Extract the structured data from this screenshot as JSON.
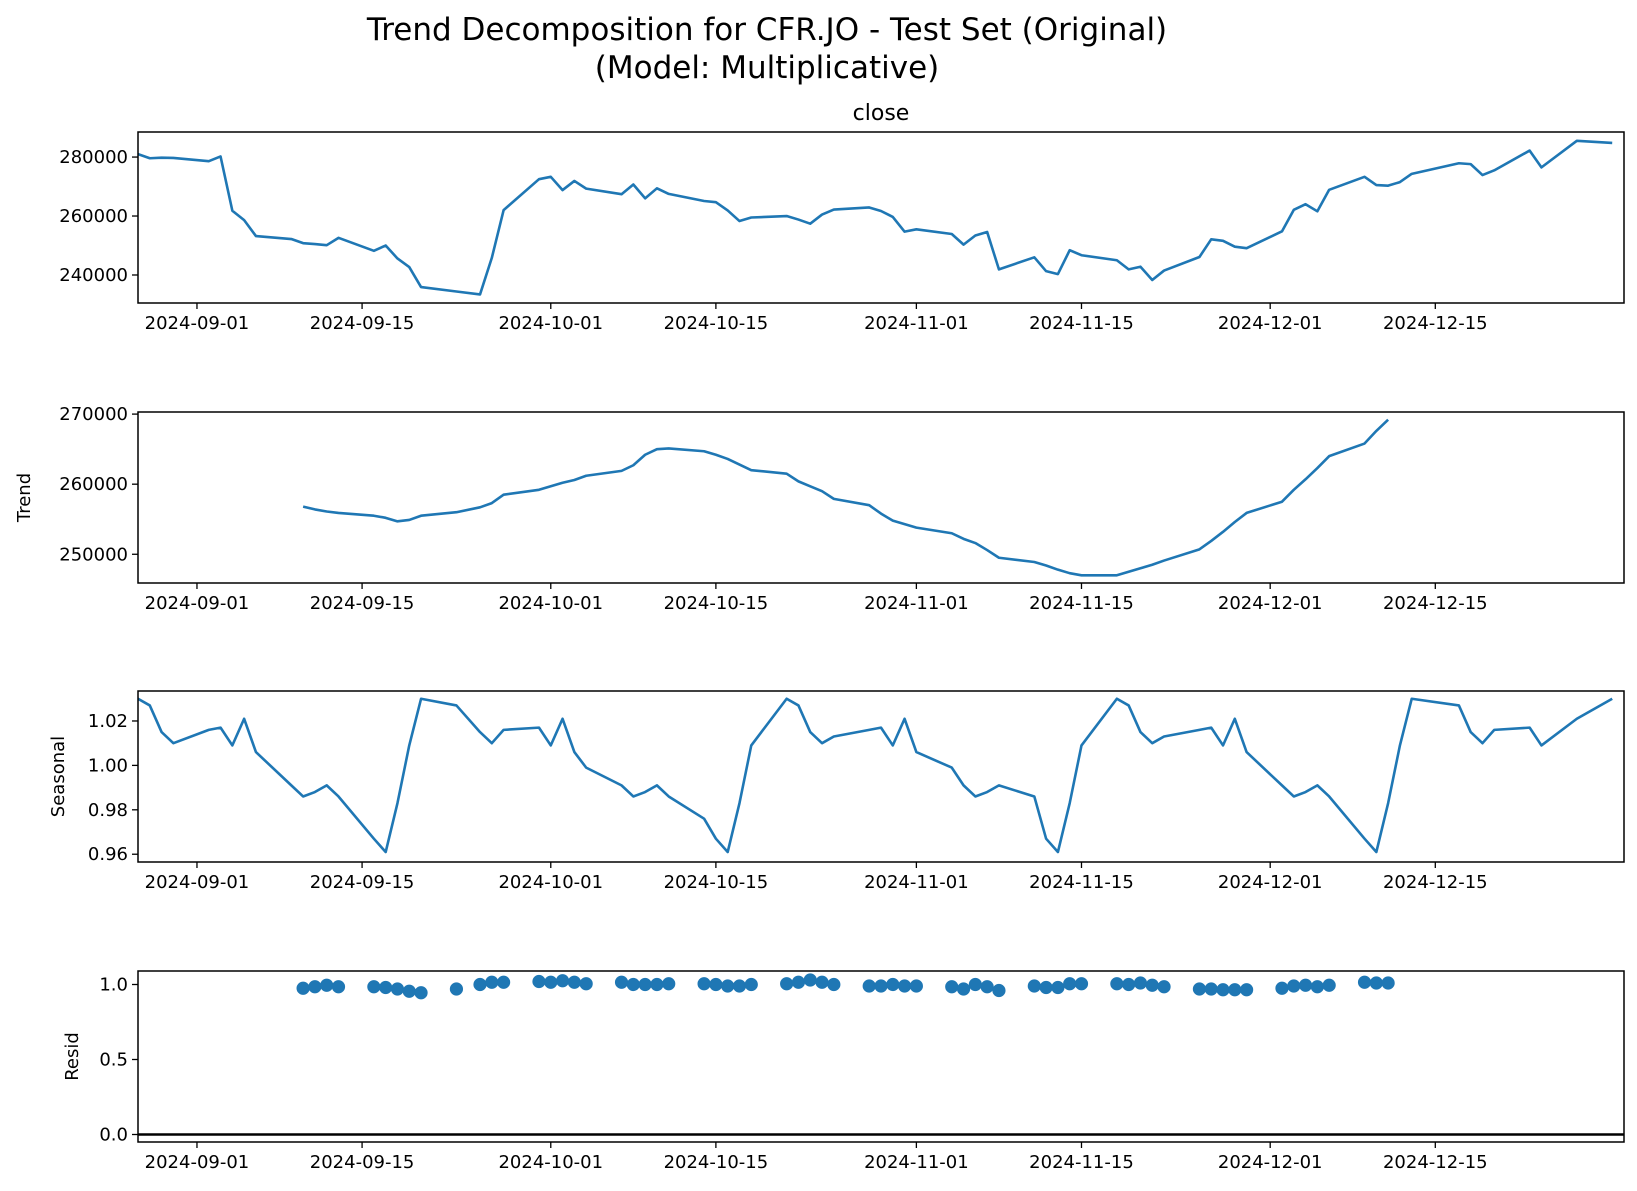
{
  "title_line1": "Trend Decomposition for CFR.JO - Test Set (Original)",
  "title_line2": "(Model: Multiplicative)",
  "colors": {
    "line": "#1f77b4",
    "axis": "#000000",
    "zero_line": "#000000"
  },
  "chart_data": [
    {
      "type": "line",
      "title": "close",
      "ylabel": "",
      "xlim": [
        "2024-08-27",
        "2024-12-31"
      ],
      "ylim": [
        230500,
        288500
      ],
      "x_ticks": [
        "2024-09-01",
        "2024-09-15",
        "2024-10-01",
        "2024-10-15",
        "2024-11-01",
        "2024-11-15",
        "2024-12-01",
        "2024-12-15"
      ],
      "y_ticks": [
        240000,
        260000,
        280000
      ],
      "series": [
        {
          "x": [
            "2024-08-27",
            "2024-08-28",
            "2024-08-29",
            "2024-08-30",
            "2024-09-02",
            "2024-09-03",
            "2024-09-04",
            "2024-09-05",
            "2024-09-06",
            "2024-09-09",
            "2024-09-10",
            "2024-09-11",
            "2024-09-12",
            "2024-09-13",
            "2024-09-16",
            "2024-09-17",
            "2024-09-18",
            "2024-09-19",
            "2024-09-20",
            "2024-09-23",
            "2024-09-25",
            "2024-09-26",
            "2024-09-27",
            "2024-09-30",
            "2024-10-01",
            "2024-10-02",
            "2024-10-03",
            "2024-10-04",
            "2024-10-07",
            "2024-10-08",
            "2024-10-09",
            "2024-10-10",
            "2024-10-11",
            "2024-10-14",
            "2024-10-15",
            "2024-10-16",
            "2024-10-17",
            "2024-10-18",
            "2024-10-21",
            "2024-10-22",
            "2024-10-23",
            "2024-10-24",
            "2024-10-25",
            "2024-10-28",
            "2024-10-29",
            "2024-10-30",
            "2024-10-31",
            "2024-11-01",
            "2024-11-04",
            "2024-11-05",
            "2024-11-06",
            "2024-11-07",
            "2024-11-08",
            "2024-11-11",
            "2024-11-12",
            "2024-11-13",
            "2024-11-14",
            "2024-11-15",
            "2024-11-18",
            "2024-11-19",
            "2024-11-20",
            "2024-11-21",
            "2024-11-22",
            "2024-11-25",
            "2024-11-26",
            "2024-11-27",
            "2024-11-28",
            "2024-11-29",
            "2024-12-02",
            "2024-12-03",
            "2024-12-04",
            "2024-12-05",
            "2024-12-06",
            "2024-12-09",
            "2024-12-10",
            "2024-12-11",
            "2024-12-12",
            "2024-12-13",
            "2024-12-17",
            "2024-12-18",
            "2024-12-19",
            "2024-12-20",
            "2024-12-23",
            "2024-12-24",
            "2024-12-27",
            "2024-12-30"
          ],
          "y": [
            281000,
            279600,
            279800,
            279700,
            278600,
            280200,
            261800,
            258600,
            253200,
            252200,
            250800,
            250500,
            250100,
            252600,
            248200,
            250000,
            245600,
            242700,
            235900,
            234400,
            233400,
            245800,
            262000,
            272500,
            273300,
            268800,
            271900,
            269300,
            267400,
            270700,
            266000,
            269400,
            267500,
            265100,
            264700,
            261900,
            258300,
            259500,
            260000,
            258800,
            257400,
            260500,
            262200,
            262900,
            261700,
            259700,
            254700,
            255500,
            253900,
            250300,
            253400,
            254600,
            241900,
            246000,
            241300,
            240300,
            248400,
            246700,
            245000,
            241900,
            242800,
            238300,
            241500,
            246100,
            252100,
            251600,
            249600,
            249100,
            254800,
            262100,
            264000,
            261600,
            268900,
            273300,
            270500,
            270300,
            271500,
            274300,
            277900,
            277600,
            273900,
            275500,
            282200,
            276500,
            285500,
            284800
          ]
        }
      ]
    },
    {
      "type": "line",
      "title": "",
      "ylabel": "Trend",
      "xlim": [
        "2024-08-27",
        "2024-12-31"
      ],
      "ylim": [
        245900,
        270300
      ],
      "x_ticks": [
        "2024-09-01",
        "2024-09-15",
        "2024-10-01",
        "2024-10-15",
        "2024-11-01",
        "2024-11-15",
        "2024-12-01",
        "2024-12-15"
      ],
      "y_ticks": [
        250000,
        260000,
        270000
      ],
      "series": [
        {
          "x": [
            "2024-09-10",
            "2024-09-11",
            "2024-09-12",
            "2024-09-13",
            "2024-09-16",
            "2024-09-17",
            "2024-09-18",
            "2024-09-19",
            "2024-09-20",
            "2024-09-23",
            "2024-09-25",
            "2024-09-26",
            "2024-09-27",
            "2024-09-30",
            "2024-10-01",
            "2024-10-02",
            "2024-10-03",
            "2024-10-04",
            "2024-10-07",
            "2024-10-08",
            "2024-10-09",
            "2024-10-10",
            "2024-10-11",
            "2024-10-14",
            "2024-10-15",
            "2024-10-16",
            "2024-10-17",
            "2024-10-18",
            "2024-10-21",
            "2024-10-22",
            "2024-10-23",
            "2024-10-24",
            "2024-10-25",
            "2024-10-28",
            "2024-10-29",
            "2024-10-30",
            "2024-10-31",
            "2024-11-01",
            "2024-11-04",
            "2024-11-05",
            "2024-11-06",
            "2024-11-07",
            "2024-11-08",
            "2024-11-11",
            "2024-11-12",
            "2024-11-13",
            "2024-11-14",
            "2024-11-15",
            "2024-11-18",
            "2024-11-19",
            "2024-11-20",
            "2024-11-21",
            "2024-11-22",
            "2024-11-25",
            "2024-11-26",
            "2024-11-27",
            "2024-11-28",
            "2024-11-29",
            "2024-12-02",
            "2024-12-03",
            "2024-12-04",
            "2024-12-05",
            "2024-12-06",
            "2024-12-09",
            "2024-12-10",
            "2024-12-11"
          ],
          "y": [
            256800,
            256400,
            256100,
            255900,
            255500,
            255200,
            254700,
            254900,
            255500,
            256000,
            256700,
            257300,
            258500,
            259200,
            259700,
            260200,
            260600,
            261200,
            261900,
            262700,
            264200,
            265000,
            265100,
            264700,
            264200,
            263600,
            262800,
            262000,
            261500,
            260400,
            259700,
            259000,
            257900,
            257000,
            255800,
            254800,
            254300,
            253800,
            253000,
            252200,
            251600,
            250600,
            249500,
            248900,
            248400,
            247800,
            247300,
            247000,
            247000,
            247500,
            248000,
            248500,
            249100,
            250700,
            251900,
            253200,
            254600,
            255900,
            257500,
            259200,
            260700,
            262300,
            264000,
            265800,
            267600,
            269200
          ]
        }
      ]
    },
    {
      "type": "line",
      "title": "",
      "ylabel": "Seasonal",
      "xlim": [
        "2024-08-27",
        "2024-12-31"
      ],
      "ylim": [
        0.9565,
        1.0335
      ],
      "x_ticks": [
        "2024-09-01",
        "2024-09-15",
        "2024-10-01",
        "2024-10-15",
        "2024-11-01",
        "2024-11-15",
        "2024-12-01",
        "2024-12-15"
      ],
      "y_ticks": [
        0.96,
        0.98,
        1.0,
        1.02
      ],
      "y_tick_labels": [
        "0.96",
        "0.98",
        "1.00",
        "1.02"
      ],
      "series": [
        {
          "x": [
            "2024-08-27",
            "2024-08-28",
            "2024-08-29",
            "2024-08-30",
            "2024-09-02",
            "2024-09-03",
            "2024-09-04",
            "2024-09-05",
            "2024-09-06",
            "2024-09-09",
            "2024-09-10",
            "2024-09-11",
            "2024-09-12",
            "2024-09-13",
            "2024-09-16",
            "2024-09-17",
            "2024-09-18",
            "2024-09-19",
            "2024-09-20",
            "2024-09-23",
            "2024-09-25",
            "2024-09-26",
            "2024-09-27",
            "2024-09-30",
            "2024-10-01",
            "2024-10-02",
            "2024-10-03",
            "2024-10-04",
            "2024-10-07",
            "2024-10-08",
            "2024-10-09",
            "2024-10-10",
            "2024-10-11",
            "2024-10-14",
            "2024-10-15",
            "2024-10-16",
            "2024-10-17",
            "2024-10-18",
            "2024-10-21",
            "2024-10-22",
            "2024-10-23",
            "2024-10-24",
            "2024-10-25",
            "2024-10-28",
            "2024-10-29",
            "2024-10-30",
            "2024-10-31",
            "2024-11-01",
            "2024-11-04",
            "2024-11-05",
            "2024-11-06",
            "2024-11-07",
            "2024-11-08",
            "2024-11-11",
            "2024-11-12",
            "2024-11-13",
            "2024-11-14",
            "2024-11-15",
            "2024-11-18",
            "2024-11-19",
            "2024-11-20",
            "2024-11-21",
            "2024-11-22",
            "2024-11-25",
            "2024-11-26",
            "2024-11-27",
            "2024-11-28",
            "2024-11-29",
            "2024-12-02",
            "2024-12-03",
            "2024-12-04",
            "2024-12-05",
            "2024-12-06",
            "2024-12-09",
            "2024-12-10",
            "2024-12-11",
            "2024-12-12",
            "2024-12-13",
            "2024-12-17",
            "2024-12-18",
            "2024-12-19",
            "2024-12-20",
            "2024-12-23",
            "2024-12-24",
            "2024-12-27",
            "2024-12-30"
          ],
          "y": [
            1.03,
            1.027,
            1.015,
            1.01,
            1.016,
            1.017,
            1.009,
            1.021,
            1.006,
            0.991,
            0.986,
            0.988,
            0.991,
            0.986,
            0.967,
            0.961,
            0.983,
            1.009,
            1.03,
            1.027,
            1.015,
            1.01,
            1.016,
            1.017,
            1.009,
            1.021,
            1.006,
            0.999,
            0.991,
            0.986,
            0.988,
            0.991,
            0.986,
            0.976,
            0.967,
            0.961,
            0.983,
            1.009,
            1.03,
            1.027,
            1.015,
            1.01,
            1.013,
            1.016,
            1.017,
            1.009,
            1.021,
            1.006,
            0.999,
            0.991,
            0.986,
            0.988,
            0.991,
            0.986,
            0.967,
            0.961,
            0.983,
            1.009,
            1.03,
            1.027,
            1.015,
            1.01,
            1.013,
            1.016,
            1.017,
            1.009,
            1.021,
            1.006,
            0.991,
            0.986,
            0.988,
            0.991,
            0.986,
            0.967,
            0.961,
            0.983,
            1.009,
            1.03,
            1.027,
            1.015,
            1.01,
            1.016,
            1.017,
            1.009,
            1.021,
            1.03
          ]
        }
      ]
    },
    {
      "type": "scatter",
      "title": "",
      "ylabel": "Resid",
      "xlim": [
        "2024-08-27",
        "2024-12-31"
      ],
      "ylim": [
        -0.05,
        1.09
      ],
      "x_ticks": [
        "2024-09-01",
        "2024-09-15",
        "2024-10-01",
        "2024-10-15",
        "2024-11-01",
        "2024-11-15",
        "2024-12-01",
        "2024-12-15"
      ],
      "y_ticks": [
        0.0,
        0.5,
        1.0
      ],
      "y_tick_labels": [
        "0.0",
        "0.5",
        "1.0"
      ],
      "baseline": 0.0,
      "series": [
        {
          "x": [
            "2024-09-10",
            "2024-09-11",
            "2024-09-12",
            "2024-09-13",
            "2024-09-16",
            "2024-09-17",
            "2024-09-18",
            "2024-09-19",
            "2024-09-20",
            "2024-09-23",
            "2024-09-25",
            "2024-09-26",
            "2024-09-27",
            "2024-09-30",
            "2024-10-01",
            "2024-10-02",
            "2024-10-03",
            "2024-10-04",
            "2024-10-07",
            "2024-10-08",
            "2024-10-09",
            "2024-10-10",
            "2024-10-11",
            "2024-10-14",
            "2024-10-15",
            "2024-10-16",
            "2024-10-17",
            "2024-10-18",
            "2024-10-21",
            "2024-10-22",
            "2024-10-23",
            "2024-10-24",
            "2024-10-25",
            "2024-10-28",
            "2024-10-29",
            "2024-10-30",
            "2024-10-31",
            "2024-11-01",
            "2024-11-04",
            "2024-11-05",
            "2024-11-06",
            "2024-11-07",
            "2024-11-08",
            "2024-11-11",
            "2024-11-12",
            "2024-11-13",
            "2024-11-14",
            "2024-11-15",
            "2024-11-18",
            "2024-11-19",
            "2024-11-20",
            "2024-11-21",
            "2024-11-22",
            "2024-11-25",
            "2024-11-26",
            "2024-11-27",
            "2024-11-28",
            "2024-11-29",
            "2024-12-02",
            "2024-12-03",
            "2024-12-04",
            "2024-12-05",
            "2024-12-06",
            "2024-12-09",
            "2024-12-10",
            "2024-12-11"
          ],
          "y": [
            0.975,
            0.985,
            0.995,
            0.985,
            0.985,
            0.98,
            0.97,
            0.955,
            0.945,
            0.97,
            1.0,
            1.015,
            1.015,
            1.02,
            1.015,
            1.025,
            1.015,
            1.005,
            1.015,
            1.0,
            1.0,
            1.0,
            1.005,
            1.005,
            1.0,
            0.99,
            0.99,
            1.0,
            1.005,
            1.015,
            1.03,
            1.015,
            1.0,
            0.99,
            0.99,
            1.0,
            0.99,
            0.99,
            0.985,
            0.97,
            1.0,
            0.985,
            0.96,
            0.99,
            0.98,
            0.98,
            1.005,
            1.005,
            1.005,
            1.0,
            1.01,
            0.995,
            0.985,
            0.97,
            0.97,
            0.965,
            0.965,
            0.965,
            0.975,
            0.99,
            0.995,
            0.985,
            0.995,
            1.015,
            1.01,
            1.01
          ]
        }
      ]
    }
  ]
}
